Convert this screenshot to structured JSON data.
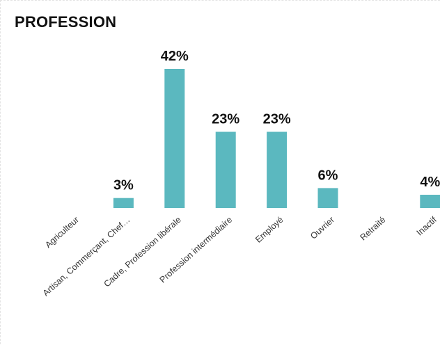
{
  "chart_data": {
    "type": "bar",
    "title": "PROFESSION",
    "categories": [
      "Agriculteur",
      "Artisan, Commerçant, Chef…",
      "Cadre, Profession libérale",
      "Profession intermédiaire",
      "Employé",
      "Ouvrier",
      "Retraité",
      "Inactif"
    ],
    "values": [
      0,
      3,
      42,
      23,
      23,
      6,
      0,
      4
    ],
    "data_labels": [
      "",
      "3%",
      "42%",
      "23%",
      "23%",
      "6%",
      "",
      "4%"
    ],
    "xlabel": "",
    "ylabel": "",
    "ylim": [
      0,
      42
    ],
    "grid": false,
    "legend": "none",
    "bar_color": "#5bb8bf"
  }
}
